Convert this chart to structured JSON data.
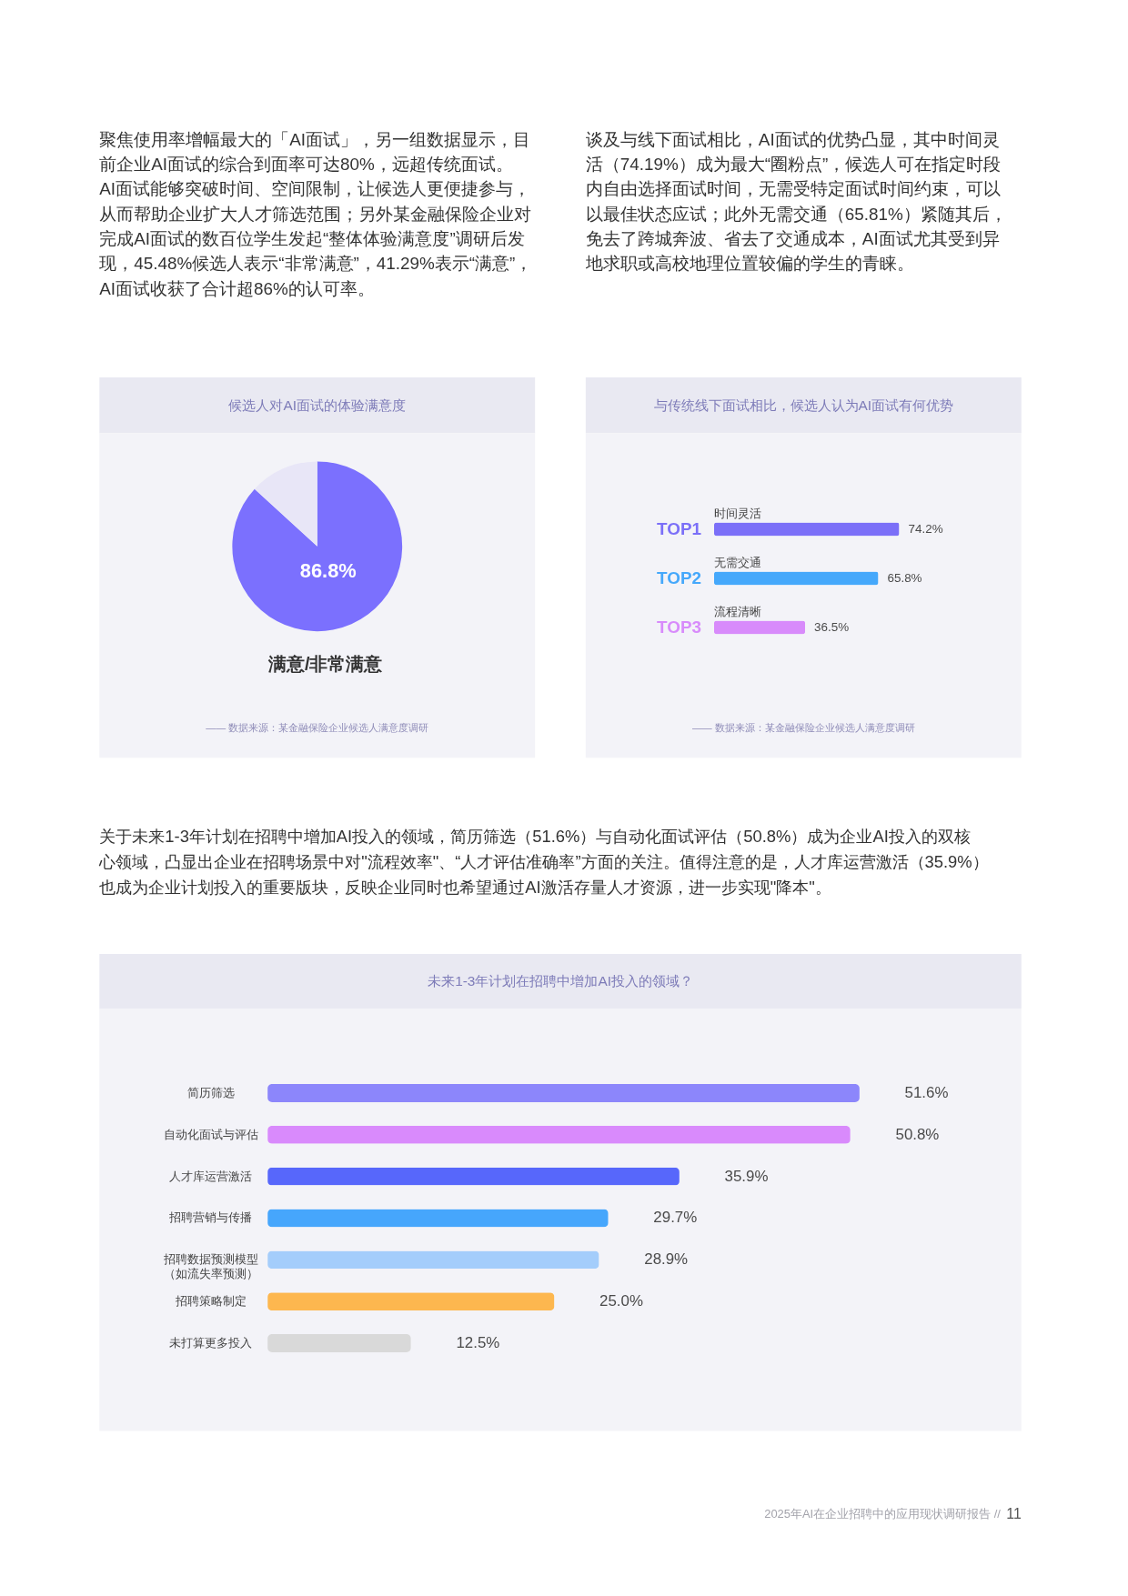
{
  "chart_data": [
    {
      "type": "pie",
      "title": "候选人对AI面试的体验满意度",
      "categories": [
        "满意/非常满意",
        null
      ],
      "values": [
        86.8,
        13.2
      ],
      "colors": [
        "#7b70fe",
        "#e8e6f7"
      ],
      "value_labels": [
        "86.8%",
        null
      ],
      "annotations": [
        "聚焦使用率增幅最大的「AI面试」，另一组数据显示，目前企业AI面试的综合到面率可达80%，远超传统面试。AI面试能够突破时间、空间限制，让候选人更便捷参与，从而帮助企业扩大人才筛选范围；另外某金融保险企业对完成AI面试的数百位学生发起“整体体验满意度”调研后发现，45.48%候选人表示“非常满意”，41.29%表示“满意”，AI面试收获了合计超86%的认可率。",
        "—— 数据来源：某金融保险企业候选人满意度调研"
      ]
    },
    {
      "type": "bar",
      "orientation": "horizontal",
      "title": "与传统线下面试相比，候选人认为AI面试有何优势",
      "categories": [
        "时间灵活",
        "无需交通",
        "流程清晰"
      ],
      "values": [
        74.2,
        65.8,
        36.5
      ],
      "colors": [
        "#7b6ff8",
        "#45a8fb",
        "#d88bfb"
      ],
      "value_labels": [
        "74.2%",
        "65.8%",
        "36.5%"
      ],
      "annotations": [
        "谈及与线下面试相比，AI面试的优势凸显，其中时间灵活（74.19%）成为最大“圈粉点”，候选人可在指定时段内自由选择面试时间，无需受特定面试时间约束，可以以最佳状态应试；此外无需交通（65.81%）紧随其后，免去了跨城奔波、省去了交通成本，AI面试尤其受到异地求职或高校地理位置较偏的学生的青睐。",
        "TOP1",
        "TOP2",
        "TOP3",
        "—— 数据来源：某金融保险企业候选人满意度调研"
      ]
    },
    {
      "type": "bar",
      "orientation": "horizontal",
      "title": "未来1-3年计划在招聘中增加AI投入的领域？",
      "categories": [
        "简历筛选",
        "自动化面试与评估",
        "人才库运营激活",
        "招聘营销与传播",
        "招聘数据预测模型（如流失率预测）",
        "招聘策略制定",
        "未打算更多投入"
      ],
      "values": [
        51.6,
        50.8,
        35.9,
        29.7,
        28.9,
        25.0,
        12.5
      ],
      "colors": [
        "#8c86fb",
        "#d98afc",
        "#5767fb",
        "#46a6fc",
        "#a4cdfb",
        "#fdb74f",
        "#d9d9d9"
      ],
      "value_labels": [
        "51.6%",
        "50.8%",
        "35.9%",
        "29.7%",
        "28.9%",
        "25.0%",
        "12.5%"
      ],
      "annotations": [
        "关于未来1-3年计划在招聘中增加AI投入的领域，简历筛选（51.6%）与自动化面试评估（50.8%）成为企业AI投入的双核心领域，凸显出企业在招聘场景中对\"流程效率\"、“人才评估准确率”方面的关注。值得注意的是，人才库运营激活（35.9%）也成为企业计划投入的重要版块，反映企业同时也希望通过AI激活存量人才资源，进一步实现\"降本\"。",
        "2025年AI在企业招聘中的应用现状调研报告 //",
        "11"
      ]
    }
  ]
}
